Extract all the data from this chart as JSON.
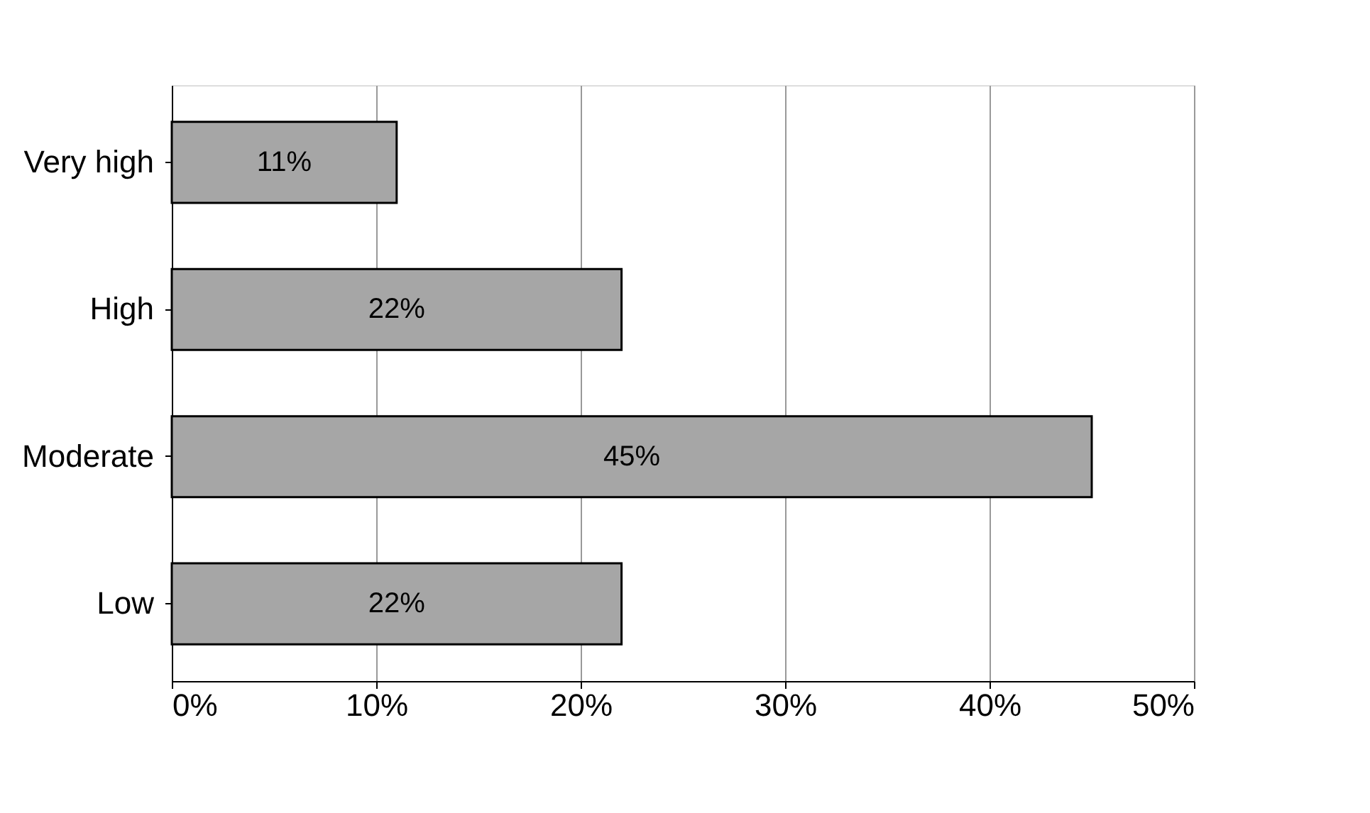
{
  "chart_data": {
    "type": "bar",
    "orientation": "horizontal",
    "categories": [
      "Very high",
      "High",
      "Moderate",
      "Low"
    ],
    "values": [
      11,
      22,
      45,
      22
    ],
    "value_labels": [
      "11%",
      "22%",
      "45%",
      "22%"
    ],
    "color": "#a6a6a6",
    "xlim": [
      0,
      50
    ],
    "xticks": [
      {
        "value": 0,
        "label": "0%"
      },
      {
        "value": 10,
        "label": "10%"
      },
      {
        "value": 20,
        "label": "20%"
      },
      {
        "value": 30,
        "label": "30%"
      },
      {
        "value": 40,
        "label": "40%"
      },
      {
        "value": 50,
        "label": "50%"
      }
    ],
    "grid": "x"
  }
}
